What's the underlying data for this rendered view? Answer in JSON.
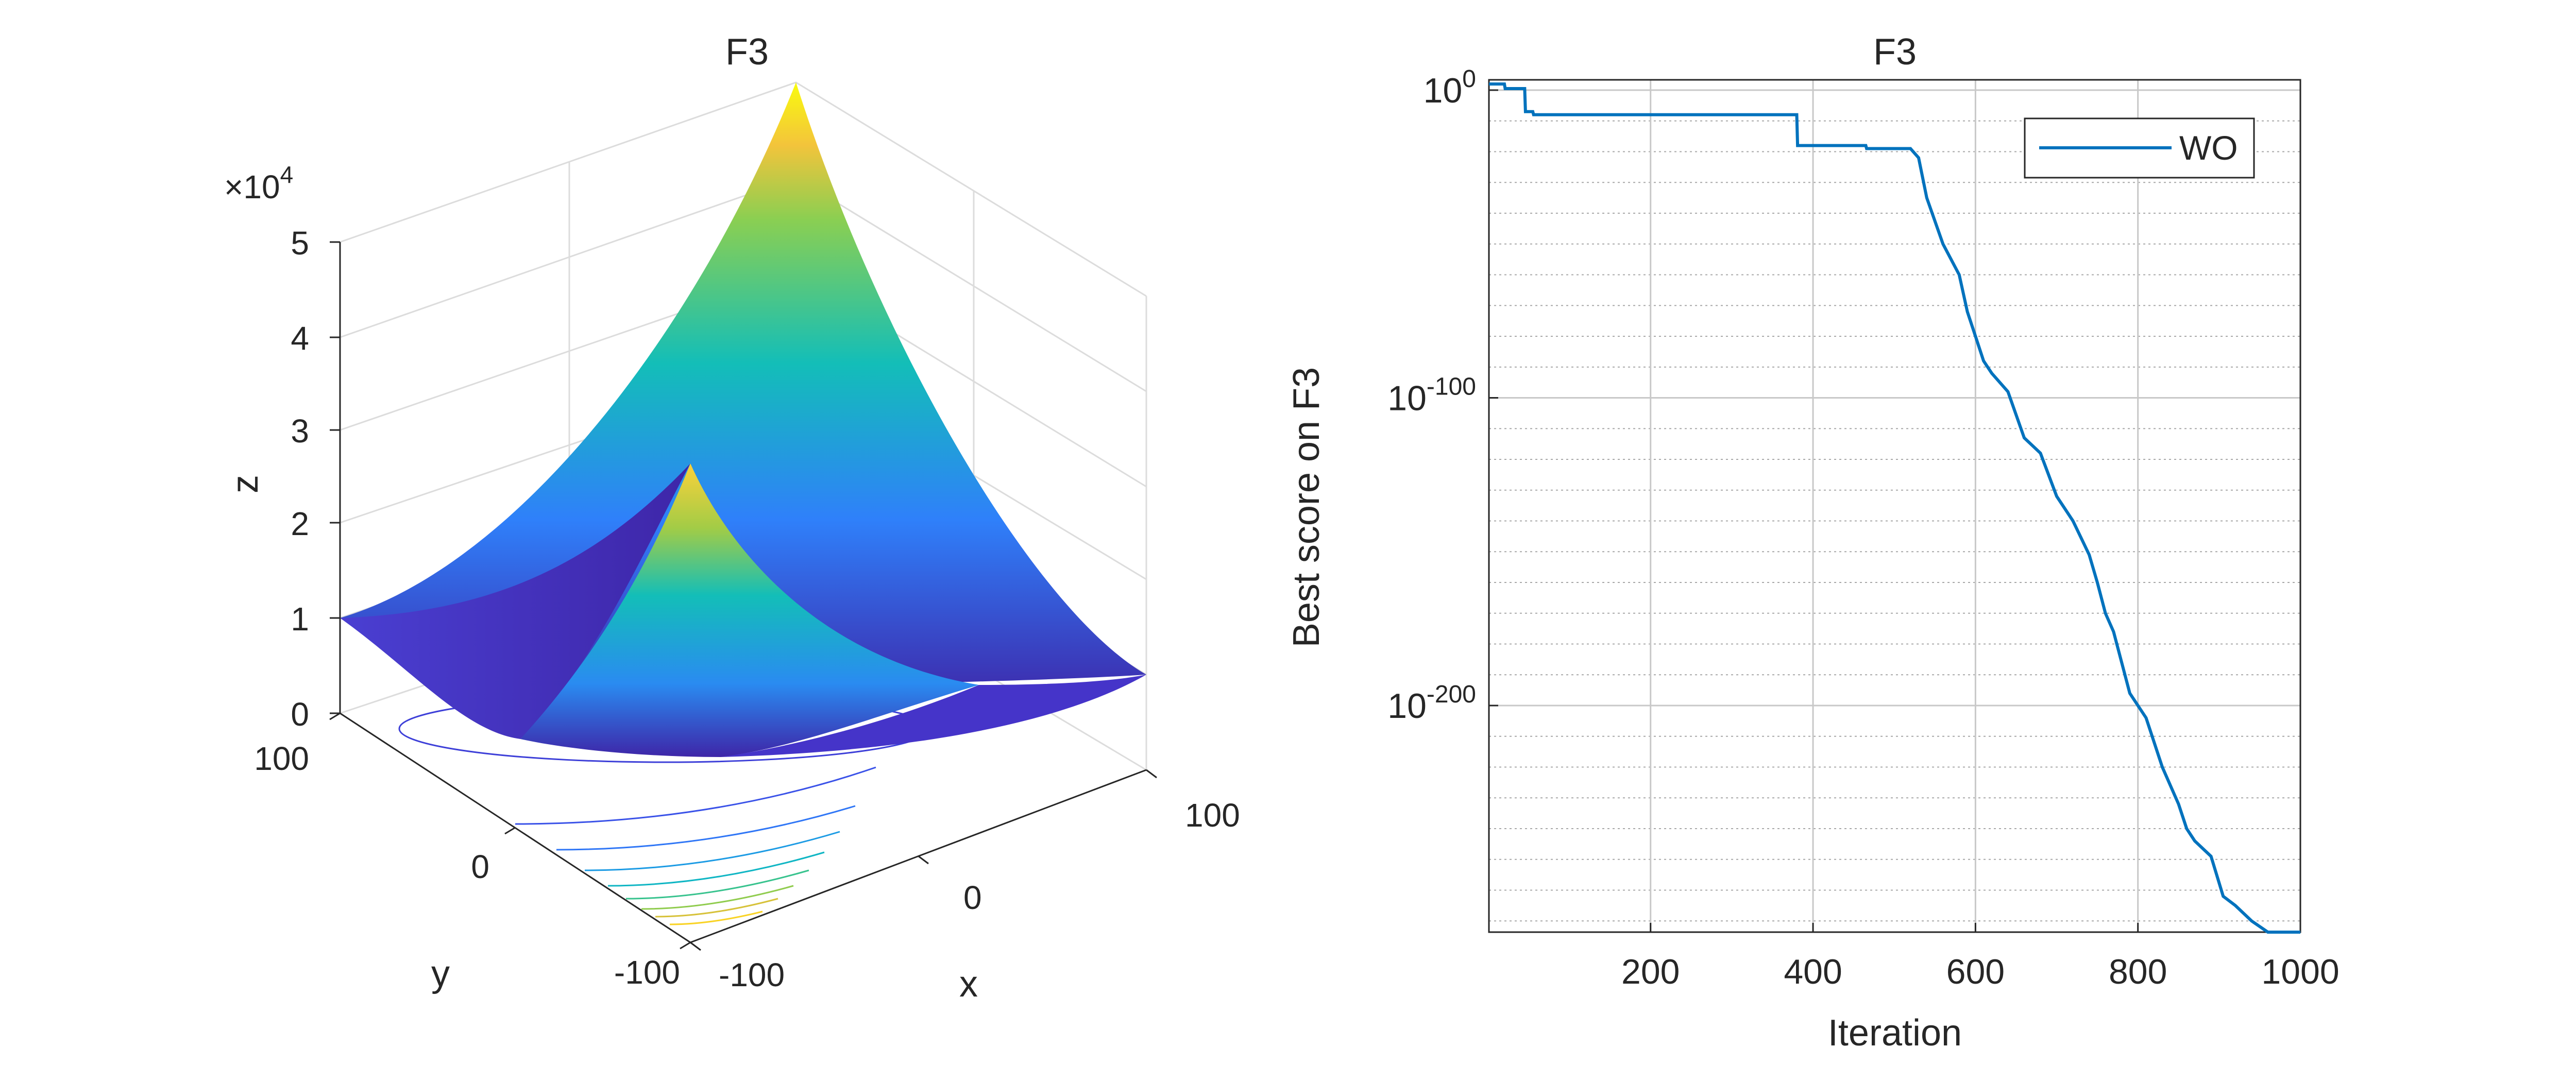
{
  "colors": {
    "axis": "#262626",
    "grid": "#c8c8c8",
    "grid_minor": "#a8a8a8",
    "line": "#0072bd",
    "surface_low": "#3e26a8",
    "surface_mid": "#00b4c4",
    "surface_high": "#f9fb0e"
  },
  "chart_data": [
    {
      "type": "surface",
      "title": "F3",
      "xlabel": "x",
      "ylabel": "y",
      "zlabel": "z",
      "z_exponent_label": "×10",
      "z_exponent": "4",
      "xlim": [
        -100,
        100
      ],
      "ylim": [
        -100,
        100
      ],
      "zlim": [
        0,
        50000
      ],
      "x_ticks": [
        "-100",
        "0",
        "100"
      ],
      "y_ticks": [
        "-100",
        "0",
        "100"
      ],
      "z_ticks": [
        "0",
        "1",
        "2",
        "3",
        "4",
        "5"
      ],
      "surface_peak_values": {
        "corner_far_max": 50000,
        "corner_near_max": 30000,
        "edge_side_max": 10000,
        "min": 0
      },
      "grid": true
    },
    {
      "type": "line",
      "title": "F3",
      "xlabel": "Iteration",
      "ylabel": "Best score on F3",
      "y_scale": "log",
      "xlim": [
        1,
        1000
      ],
      "ylim_exponent": [
        -285,
        5
      ],
      "x_ticks": [
        "200",
        "400",
        "600",
        "800",
        "1000"
      ],
      "y_ticks": [
        {
          "base": "10",
          "exp": "0",
          "value_exp": 0
        },
        {
          "base": "10",
          "exp": "-100",
          "value_exp": -100
        },
        {
          "base": "10",
          "exp": "-200",
          "value_exp": -200
        }
      ],
      "legend": "top-right",
      "grid": true,
      "series": [
        {
          "name": "WO",
          "x": [
            1,
            20,
            21,
            45,
            46,
            55,
            56,
            380,
            381,
            465,
            466,
            520,
            530,
            540,
            560,
            580,
            590,
            600,
            610,
            620,
            640,
            660,
            680,
            700,
            720,
            740,
            750,
            760,
            770,
            790,
            810,
            830,
            850,
            860,
            870,
            890,
            905,
            920,
            940,
            960,
            980,
            990,
            1000
          ],
          "log10_y": [
            2,
            2,
            0.5,
            0.5,
            -7,
            -7,
            -8,
            -8,
            -18,
            -18,
            -19,
            -19,
            -22,
            -35,
            -50,
            -60,
            -72,
            -80,
            -88,
            -92,
            -98,
            -113,
            -118,
            -132,
            -140,
            -151,
            -160,
            -170,
            -176,
            -196,
            -204,
            -220,
            -232,
            -240,
            -244,
            -249,
            -262,
            -265,
            -270,
            -276,
            -281,
            -285,
            -288
          ]
        }
      ]
    }
  ]
}
